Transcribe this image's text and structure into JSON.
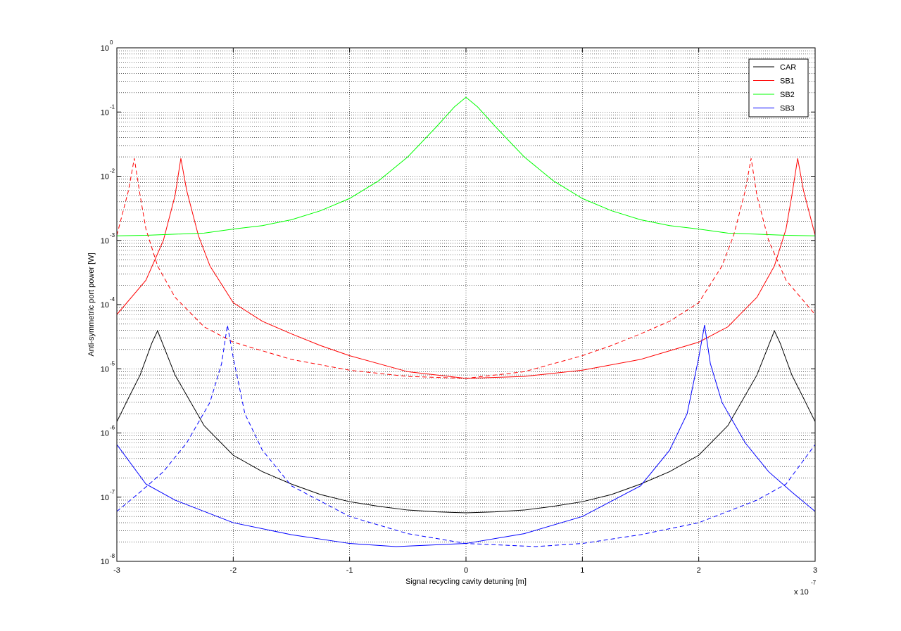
{
  "chart_data": {
    "type": "line",
    "xlabel": "Signal recycling cavity detuning [m]",
    "ylabel": "Anti-symmetric port power [W]",
    "x_multiplier": {
      "base": "x 10",
      "exponent": "-7"
    },
    "xlim": [
      -3,
      3
    ],
    "xticks": [
      -3,
      -2,
      -1,
      0,
      1,
      2,
      3
    ],
    "ylim": [
      1e-08,
      1
    ],
    "log_y": true,
    "grid": true,
    "legend": "top-right",
    "yticks": [
      {
        "value": 1e-08,
        "label": "10",
        "exponent": "-8"
      },
      {
        "value": 1e-07,
        "label": "10",
        "exponent": "-7"
      },
      {
        "value": 1e-06,
        "label": "10",
        "exponent": "-6"
      },
      {
        "value": 1e-05,
        "label": "10",
        "exponent": "-5"
      },
      {
        "value": 0.0001,
        "label": "10",
        "exponent": "-4"
      },
      {
        "value": 0.001,
        "label": "10",
        "exponent": "-3"
      },
      {
        "value": 0.01,
        "label": "10",
        "exponent": "-2"
      },
      {
        "value": 0.1,
        "label": "10",
        "exponent": "-1"
      },
      {
        "value": 1,
        "label": "10",
        "exponent": "0"
      }
    ],
    "series": [
      {
        "name": "CAR",
        "color": "#000000",
        "x": [
          -3,
          -2.9,
          -2.8,
          -2.7,
          -2.65,
          -2.6,
          -2.5,
          -2.25,
          -2,
          -1.75,
          -1.5,
          -1.25,
          -1,
          -0.75,
          -0.5,
          -0.25,
          0,
          0.25,
          0.5,
          0.75,
          1,
          1.25,
          1.5,
          1.75,
          2,
          2.25,
          2.5,
          2.6,
          2.65,
          2.7,
          2.8,
          2.9,
          3
        ],
        "values": [
          1.5e-06,
          3.5e-06,
          8e-06,
          2.5e-05,
          3.9e-05,
          2.3e-05,
          8e-06,
          1.3e-06,
          4.5e-07,
          2.5e-07,
          1.6e-07,
          1.1e-07,
          8.5e-08,
          7.2e-08,
          6.3e-08,
          5.9e-08,
          5.7e-08,
          5.9e-08,
          6.3e-08,
          7.2e-08,
          8.5e-08,
          1.1e-07,
          1.6e-07,
          2.5e-07,
          4.5e-07,
          1.3e-06,
          8e-06,
          2.3e-05,
          3.9e-05,
          2.5e-05,
          8e-06,
          3.5e-06,
          1.5e-06
        ]
      },
      {
        "name": "SB1",
        "color": "#ff0000",
        "x": [
          -3,
          -2.75,
          -2.6,
          -2.5,
          -2.45,
          -2.4,
          -2.3,
          -2.2,
          -2,
          -1.75,
          -1.5,
          -1.25,
          -1,
          -0.5,
          0,
          0.5,
          1,
          1.5,
          2,
          2.25,
          2.5,
          2.65,
          2.75,
          2.8,
          2.85,
          2.9,
          3
        ],
        "values": [
          7e-05,
          0.00024,
          0.001,
          0.005,
          0.019,
          0.006,
          0.0012,
          0.0004,
          0.000107,
          5.5e-05,
          3.5e-05,
          2.3e-05,
          1.6e-05,
          9e-06,
          7.1e-06,
          7.6e-06,
          9.5e-06,
          1.4e-05,
          2.6e-05,
          4.5e-05,
          0.00013,
          0.0004,
          0.0015,
          0.005,
          0.019,
          0.006,
          0.0012
        ]
      },
      {
        "name": "SB2",
        "color": "#00ff00",
        "x": [
          -3,
          -2.75,
          -2.5,
          -2.25,
          -2,
          -1.75,
          -1.5,
          -1.25,
          -1,
          -0.75,
          -0.5,
          -0.25,
          -0.1,
          0,
          0.1,
          0.25,
          0.5,
          0.75,
          1,
          1.25,
          1.5,
          1.75,
          2,
          2.25,
          2.5,
          2.75,
          3
        ],
        "values": [
          0.00118,
          0.0012,
          0.00125,
          0.0013,
          0.0015,
          0.0017,
          0.0021,
          0.0029,
          0.0045,
          0.0085,
          0.02,
          0.06,
          0.12,
          0.17,
          0.12,
          0.06,
          0.02,
          0.0085,
          0.0045,
          0.0029,
          0.0021,
          0.0017,
          0.0015,
          0.0013,
          0.00125,
          0.0012,
          0.00118
        ]
      },
      {
        "name": "SB3",
        "color": "#0000ff",
        "x": [
          -3,
          -2.75,
          -2.5,
          -2,
          -1.5,
          -1,
          -0.6,
          0,
          0.5,
          1,
          1.5,
          1.75,
          1.9,
          2,
          2.05,
          2.1,
          2.2,
          2.4,
          2.6,
          2.8,
          3
        ],
        "values": [
          6.6e-07,
          1.6e-07,
          9e-08,
          4e-08,
          2.6e-08,
          1.9e-08,
          1.7e-08,
          1.9e-08,
          2.7e-08,
          5e-08,
          1.5e-07,
          5.4e-07,
          2e-06,
          1.5e-05,
          4.8e-05,
          1.2e-05,
          3e-06,
          7e-07,
          2.5e-07,
          1.2e-07,
          6e-08
        ]
      },
      {
        "color": "#ff0000",
        "dash": true,
        "x": [
          -3,
          -2.9,
          -2.85,
          -2.8,
          -2.75,
          -2.65,
          -2.5,
          -2.25,
          -2,
          -1.5,
          -1,
          -0.5,
          0,
          0.5,
          1,
          1.25,
          1.5,
          1.75,
          2,
          2.2,
          2.3,
          2.4,
          2.45,
          2.5,
          2.6,
          2.75,
          3
        ],
        "values": [
          0.0012,
          0.006,
          0.019,
          0.005,
          0.0015,
          0.0004,
          0.00013,
          4.5e-05,
          2.6e-05,
          1.4e-05,
          9.5e-06,
          7.6e-06,
          7.1e-06,
          9e-06,
          1.6e-05,
          2.3e-05,
          3.5e-05,
          5.5e-05,
          0.000107,
          0.0004,
          0.0012,
          0.006,
          0.019,
          0.005,
          0.001,
          0.00024,
          7e-05
        ]
      },
      {
        "color": "#0000ff",
        "dash": true,
        "x": [
          -3,
          -2.8,
          -2.6,
          -2.4,
          -2.2,
          -2.1,
          -2.05,
          -2,
          -1.9,
          -1.75,
          -1.5,
          -1,
          -0.5,
          0,
          0.6,
          1,
          1.5,
          2,
          2.5,
          2.75,
          3
        ],
        "values": [
          6e-08,
          1.2e-07,
          2.5e-07,
          7e-07,
          3e-06,
          1.2e-05,
          4.8e-05,
          1.5e-05,
          2e-06,
          5.4e-07,
          1.5e-07,
          5e-08,
          2.7e-08,
          1.9e-08,
          1.7e-08,
          1.9e-08,
          2.6e-08,
          4e-08,
          9e-08,
          1.6e-07,
          6.6e-07
        ]
      }
    ]
  }
}
